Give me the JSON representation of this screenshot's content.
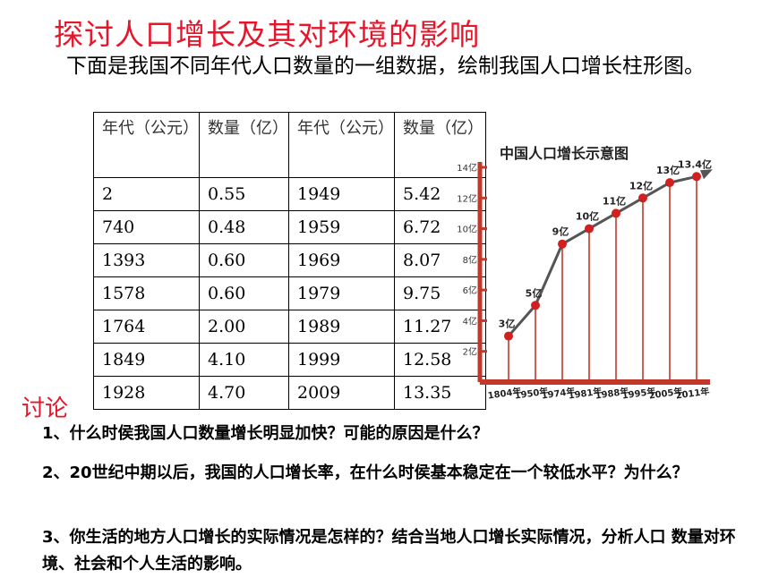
{
  "title": "探讨人口增长及其对环境的影响",
  "intro": "下面是我国不同年代人口数量的一组数据，绘制我国人口增长柱形图。",
  "table": {
    "headers": [
      "年代（公元）",
      "数量（亿）",
      "年代（公元）",
      "数量（亿）"
    ],
    "rows": [
      [
        "2",
        "0.55",
        "1949",
        "5.42"
      ],
      [
        "740",
        "0.48",
        "1959",
        "6.72"
      ],
      [
        "1393",
        "0.60",
        "1969",
        "8.07"
      ],
      [
        "1578",
        "0.60",
        "1979",
        "9.75"
      ],
      [
        "1764",
        "2.00",
        "1989",
        "11.27"
      ],
      [
        "1849",
        "4.10",
        "1999",
        "12.58"
      ],
      [
        "1928",
        "4.70",
        "2009",
        "13.35"
      ]
    ]
  },
  "discussion": {
    "heading": "讨论",
    "questions": [
      "1、什么时侯我国人口数量增长明显加快？可能的原因是什么？",
      "2、20世纪中期以后，我国的人口增长率，在什么时侯基本稳定在一个较低水平？为什么？",
      "3、你生活的地方人口增长的实际情况是怎样的？结合当地人口增长实际情况，分析人口 数量对环境、社会和个人生活的影响。"
    ]
  },
  "chart_data": {
    "type": "line",
    "title": "中国人口增长示意图",
    "x": [
      "1804年",
      "1950年",
      "1974年",
      "1981年",
      "1988年",
      "1995年",
      "2005年",
      "2011年"
    ],
    "values": [
      3,
      5,
      9,
      10,
      11,
      12,
      13,
      13.4
    ],
    "point_labels": [
      "3亿",
      "5亿",
      "9亿",
      "10亿",
      "11亿",
      "12亿",
      "13亿",
      "13.4亿"
    ],
    "yticks": [
      "2亿",
      "4亿",
      "6亿",
      "8亿",
      "10亿",
      "12亿",
      "14亿"
    ],
    "ylim": [
      0,
      14
    ],
    "colors": {
      "axis": "#c0392b",
      "line": "#555555",
      "marker": "#d21f1f",
      "title": "#222222"
    }
  }
}
